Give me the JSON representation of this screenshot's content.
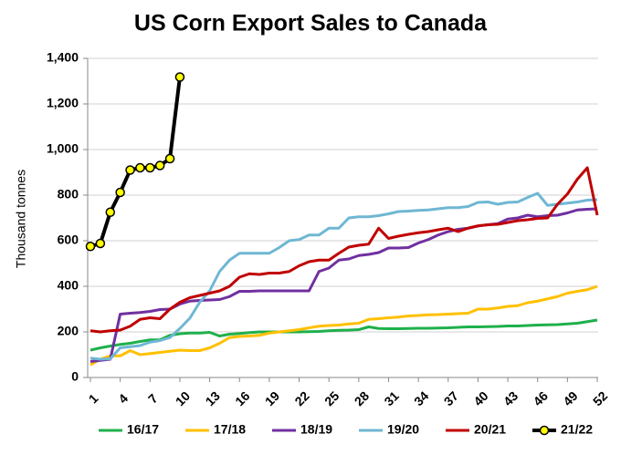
{
  "chart_data": {
    "type": "line",
    "title": "US Corn Export Sales to Canada",
    "y_label": "Thousand tonnes",
    "x": [
      1,
      2,
      3,
      4,
      5,
      6,
      7,
      8,
      9,
      10,
      11,
      12,
      13,
      14,
      15,
      16,
      17,
      18,
      19,
      20,
      21,
      22,
      23,
      24,
      25,
      26,
      27,
      28,
      29,
      30,
      31,
      32,
      33,
      34,
      35,
      36,
      37,
      38,
      39,
      40,
      41,
      42,
      43,
      44,
      45,
      46,
      47,
      48,
      49,
      50,
      51,
      52
    ],
    "xlim": [
      1,
      52
    ],
    "xticks": [
      1,
      4,
      7,
      10,
      13,
      16,
      19,
      22,
      25,
      28,
      31,
      34,
      37,
      40,
      43,
      46,
      49,
      52
    ],
    "ylim": [
      0,
      1400
    ],
    "yticks": [
      0,
      200,
      400,
      600,
      800,
      {
        "value": 1000,
        "label": "1,000"
      },
      {
        "value": 1200,
        "label": "1,200"
      },
      {
        "value": 1400,
        "label": "1,400"
      }
    ],
    "grid": true,
    "legend": "bottom",
    "series": [
      {
        "name": "16/17",
        "color": "#1fb04b",
        "values": [
          120,
          130,
          138,
          145,
          150,
          158,
          165,
          165,
          185,
          192,
          195,
          195,
          198,
          182,
          190,
          193,
          197,
          200,
          200,
          200,
          200,
          200,
          201,
          202,
          205,
          207,
          208,
          210,
          222,
          215,
          214,
          214,
          215,
          216,
          216,
          217,
          218,
          220,
          222,
          222,
          223,
          224,
          226,
          226,
          228,
          230,
          231,
          232,
          235,
          238,
          245,
          252
        ]
      },
      {
        "name": "17/18",
        "color": "#ffc000",
        "values": [
          55,
          80,
          95,
          95,
          118,
          100,
          105,
          110,
          115,
          120,
          118,
          118,
          130,
          150,
          175,
          180,
          182,
          185,
          195,
          200,
          205,
          210,
          218,
          225,
          228,
          230,
          235,
          238,
          255,
          258,
          262,
          265,
          270,
          272,
          275,
          276,
          278,
          280,
          282,
          300,
          300,
          305,
          312,
          315,
          328,
          335,
          345,
          355,
          370,
          378,
          385,
          400
        ]
      },
      {
        "name": "18/19",
        "color": "#7030a0",
        "values": [
          70,
          75,
          80,
          278,
          282,
          285,
          290,
          298,
          300,
          322,
          335,
          338,
          340,
          342,
          355,
          378,
          378,
          380,
          380,
          380,
          380,
          380,
          380,
          465,
          480,
          515,
          520,
          535,
          540,
          548,
          568,
          568,
          570,
          590,
          605,
          625,
          640,
          650,
          655,
          665,
          670,
          675,
          695,
          700,
          712,
          705,
          710,
          712,
          722,
          735,
          738,
          740
        ]
      },
      {
        "name": "19/20",
        "color": "#6fb7d3",
        "values": [
          85,
          80,
          82,
          130,
          135,
          140,
          155,
          162,
          175,
          215,
          260,
          330,
          380,
          465,
          515,
          545,
          545,
          545,
          545,
          570,
          600,
          605,
          625,
          625,
          655,
          655,
          700,
          705,
          705,
          710,
          718,
          728,
          730,
          733,
          735,
          740,
          745,
          745,
          750,
          768,
          770,
          760,
          768,
          770,
          790,
          808,
          755,
          760,
          765,
          770,
          778,
          780
        ]
      },
      {
        "name": "20/21",
        "color": "#c00000",
        "values": [
          205,
          200,
          205,
          208,
          225,
          255,
          262,
          258,
          300,
          330,
          350,
          360,
          370,
          380,
          400,
          440,
          455,
          452,
          458,
          458,
          465,
          490,
          508,
          515,
          515,
          545,
          572,
          580,
          585,
          655,
          610,
          620,
          628,
          635,
          640,
          648,
          655,
          640,
          655,
          665,
          670,
          672,
          680,
          688,
          692,
          698,
          700,
          760,
          805,
          870,
          920,
          712
        ]
      },
      {
        "name": "21/22",
        "color": "#000000",
        "marker_fill": "#ffff00",
        "values": [
          575,
          588,
          725,
          812,
          910,
          920,
          920,
          930,
          960,
          1318,
          null,
          null,
          null,
          null,
          null,
          null,
          null,
          null,
          null,
          null,
          null,
          null,
          null,
          null,
          null,
          null,
          null,
          null,
          null,
          null,
          null,
          null,
          null,
          null,
          null,
          null,
          null,
          null,
          null,
          null,
          null,
          null,
          null,
          null,
          null,
          null,
          null,
          null,
          null,
          null,
          null,
          null
        ]
      }
    ]
  }
}
